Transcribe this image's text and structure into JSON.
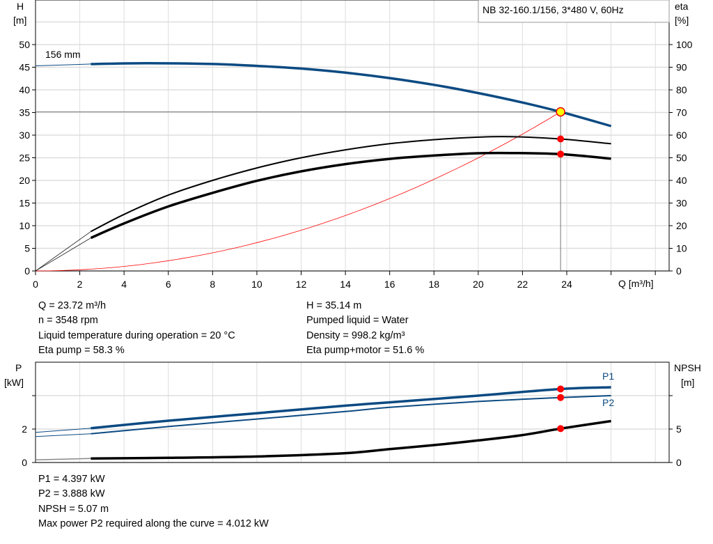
{
  "chart_data": [
    {
      "type": "line",
      "title": "NB 32-160.1/156, 3*480 V, 60Hz",
      "curve_label": "156 mm",
      "xlabel": "Q [m³/h]",
      "ylabel_left": [
        "H",
        "[m]"
      ],
      "ylabel_right": [
        "eta",
        "[%]"
      ],
      "xlim": [
        0,
        28
      ],
      "ylim_left": [
        0,
        55
      ],
      "ylim_right": [
        0,
        110
      ],
      "x_ticks": [
        0,
        2,
        4,
        6,
        8,
        10,
        12,
        14,
        16,
        18,
        20,
        22,
        24
      ],
      "y_ticks_left": [
        0,
        5,
        10,
        15,
        20,
        25,
        30,
        35,
        40,
        45,
        50
      ],
      "y_ticks_right": [
        0,
        10,
        20,
        30,
        40,
        50,
        60,
        70,
        80,
        90,
        100
      ],
      "grid": true,
      "series": [
        {
          "key": "H",
          "axis": "left",
          "color": "#0b4a82",
          "x": [
            0,
            2.5,
            5,
            8,
            10,
            12,
            14,
            16,
            18,
            20,
            22,
            23.72,
            26
          ],
          "y": [
            45.3,
            45.7,
            45.9,
            45.7,
            45.3,
            44.7,
            43.8,
            42.6,
            41.1,
            39.3,
            37.2,
            35.14,
            32.0
          ]
        },
        {
          "key": "eta_pump",
          "axis": "right",
          "color": "#000000",
          "x": [
            0,
            2.5,
            4,
            6,
            8,
            10,
            12,
            14,
            16,
            18,
            20,
            21.5,
            23.72,
            26
          ],
          "y": [
            0,
            17.4,
            25,
            33.5,
            40,
            45.5,
            50,
            53.5,
            56.2,
            58,
            59.1,
            59.3,
            58.3,
            56.2
          ]
        },
        {
          "key": "eta_pump_motor",
          "axis": "right",
          "color": "#000000",
          "x": [
            0,
            2.5,
            4,
            6,
            8,
            10,
            12,
            14,
            16,
            18,
            20,
            21.5,
            23.72,
            26
          ],
          "y": [
            0,
            14.6,
            21,
            28.5,
            34.5,
            39.8,
            44,
            47.2,
            49.5,
            51,
            52,
            52.1,
            51.6,
            49.6
          ]
        },
        {
          "key": "system_curve",
          "axis": "left",
          "color": "#ff0000",
          "equation_coefficient": 0.06245,
          "x_range": [
            0,
            23.72
          ]
        }
      ],
      "operating_point": {
        "Q": 23.72,
        "H": 35.14,
        "eta_pump": 58.3,
        "eta_pump_motor": 51.6
      }
    },
    {
      "type": "line",
      "xlim": [
        0,
        28
      ],
      "ylabel_left": [
        "P",
        "[kW]"
      ],
      "ylabel_right": [
        "NPSH",
        "[m]"
      ],
      "ylim_left": [
        0,
        6
      ],
      "ylim_right": [
        0,
        15
      ],
      "y_ticks_left": [
        "0",
        "2",
        ""
      ],
      "y_ticks_right": [
        "0",
        "5",
        ""
      ],
      "grid": true,
      "series": [
        {
          "key": "P1",
          "name": "P1",
          "axis": "left",
          "color": "#0b4a82",
          "x": [
            0,
            2.5,
            6,
            10,
            14,
            16,
            20,
            23.72,
            26
          ],
          "y": [
            1.8,
            2.05,
            2.5,
            2.95,
            3.4,
            3.6,
            4.0,
            4.397,
            4.5
          ]
        },
        {
          "key": "P2",
          "name": "P2",
          "axis": "left",
          "color": "#0b4a82",
          "x": [
            0,
            2.5,
            6,
            10,
            14,
            16,
            20,
            23.72,
            26
          ],
          "y": [
            1.55,
            1.72,
            2.15,
            2.6,
            3.05,
            3.3,
            3.65,
            3.888,
            4.0
          ]
        },
        {
          "key": "NPSH",
          "axis": "right",
          "color": "#000000",
          "x": [
            0,
            2.5,
            6,
            10,
            14,
            16,
            18,
            20,
            22,
            23.72,
            26
          ],
          "y": [
            0.4,
            0.6,
            0.7,
            0.9,
            1.4,
            2.0,
            2.6,
            3.3,
            4.1,
            5.07,
            6.2
          ]
        }
      ],
      "operating_point": {
        "Q": 23.72,
        "P1": 4.397,
        "P2": 3.888,
        "NPSH": 5.07
      }
    }
  ],
  "info_top": {
    "q": "Q = 23.72 m³/h",
    "n": "n = 3548 rpm",
    "temp": "Liquid temperature during operation = 20 °C",
    "eta_pump": "Eta pump = 58.3 %",
    "h": "H = 35.14 m",
    "liquid": "Pumped liquid = Water",
    "density": "Density = 998.2 kg/m³",
    "eta_total": "Eta pump+motor = 51.6 %"
  },
  "info_bottom": {
    "p1": "P1 = 4.397 kW",
    "p2": "P2 = 3.888 kW",
    "npsh": "NPSH = 5.07 m",
    "max_power": "Max power P2 required along the curve = 4.012 kW"
  }
}
